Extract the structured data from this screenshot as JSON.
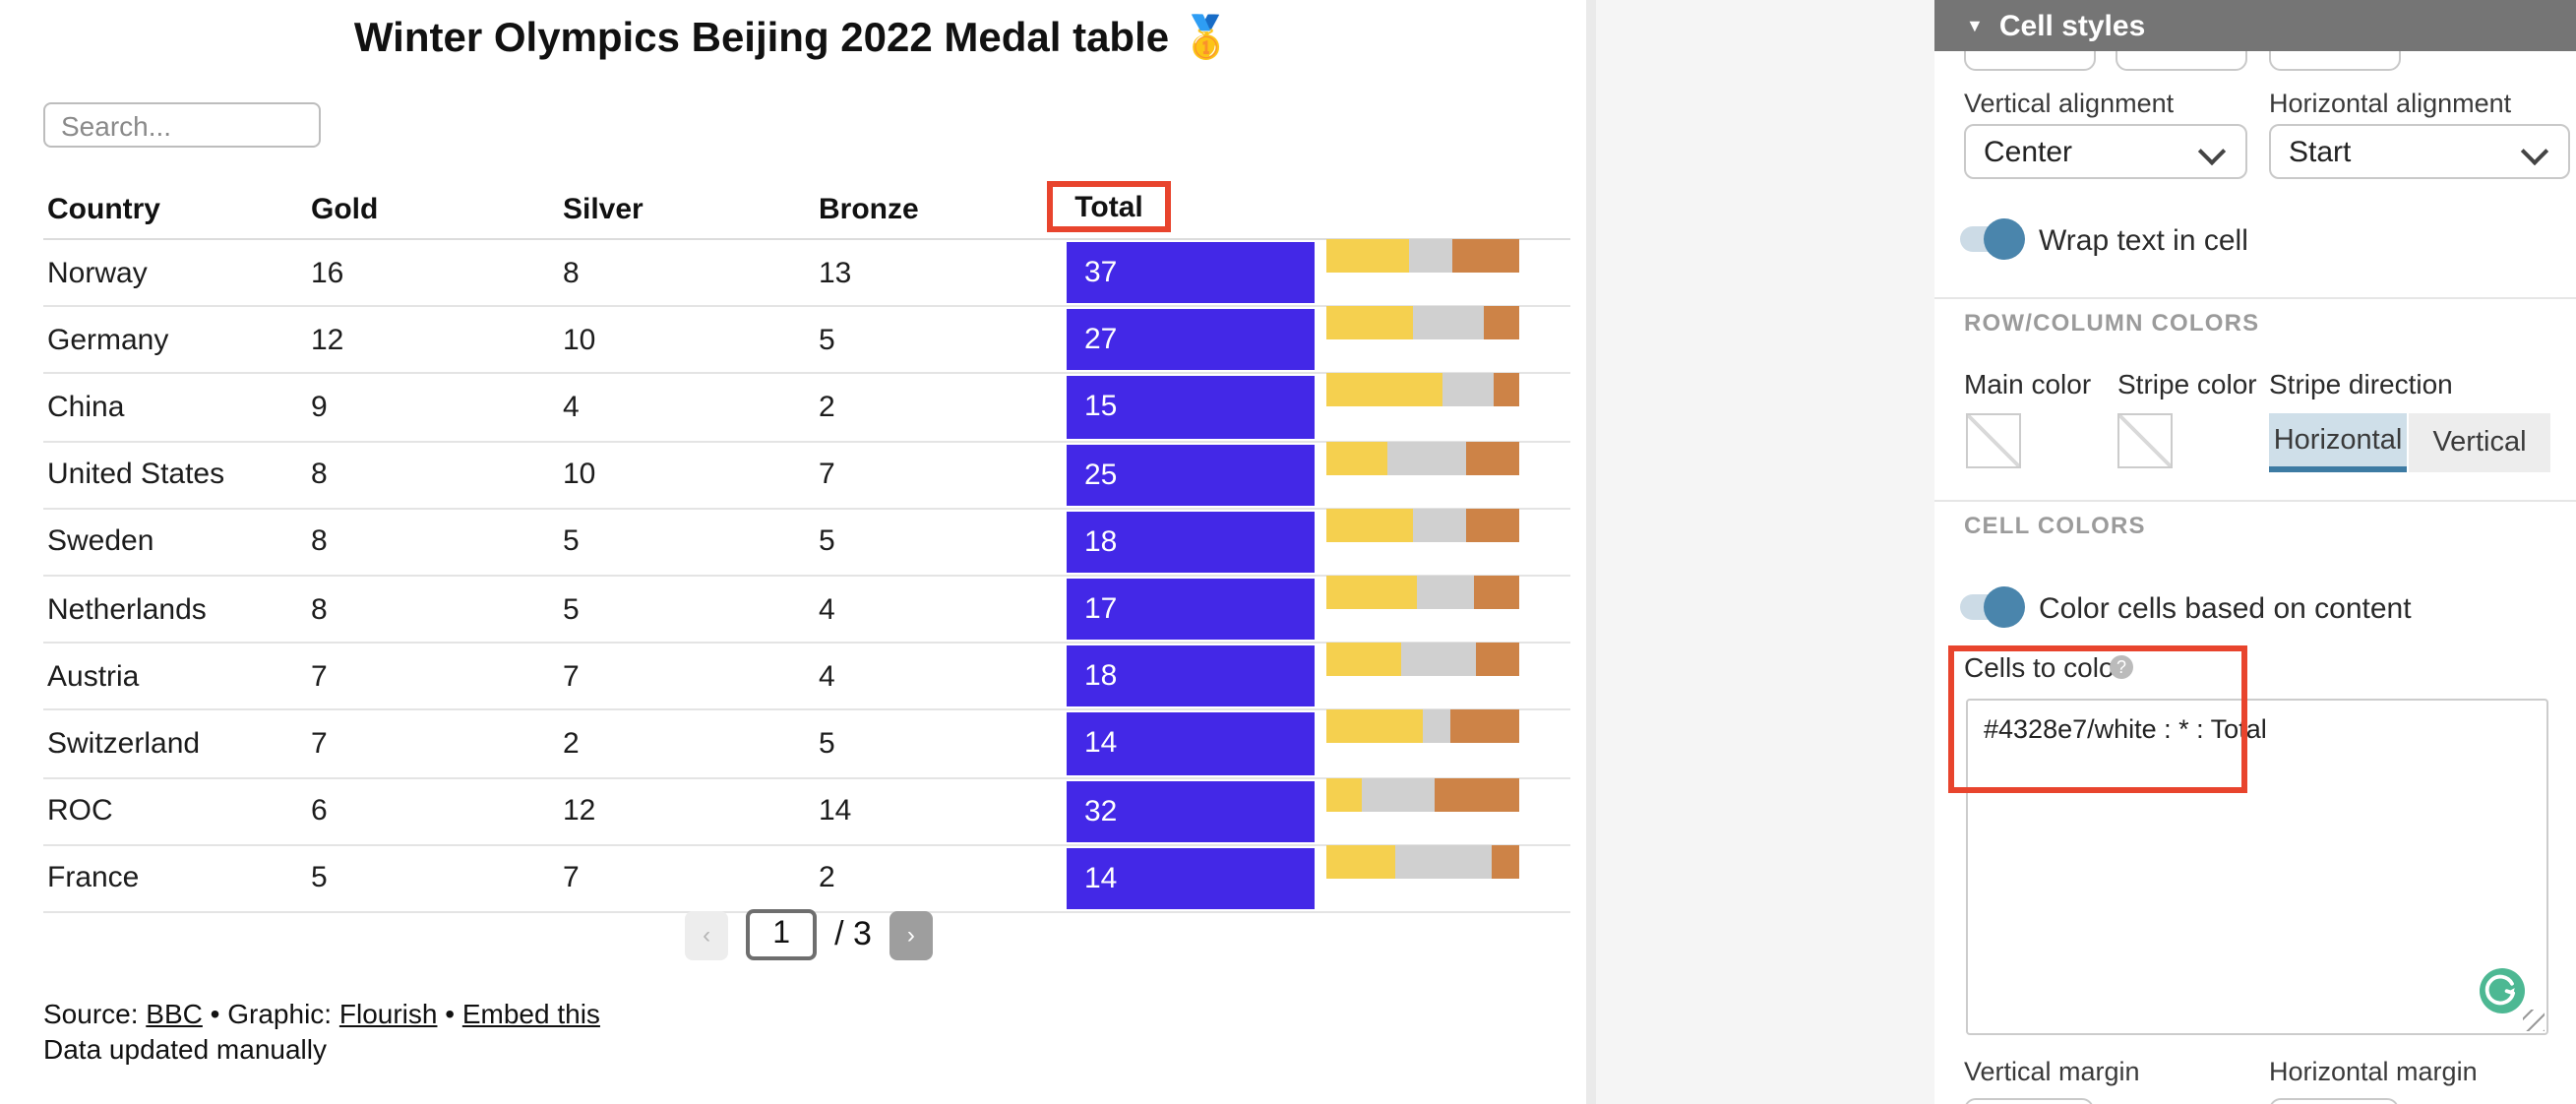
{
  "viz": {
    "title": "Winter Olympics Beijing 2022 Medal table 🥇",
    "search_placeholder": "Search...",
    "columns": [
      "Country",
      "Gold",
      "Silver",
      "Bronze",
      "Total"
    ],
    "rows": [
      {
        "country": "Norway",
        "gold": 16,
        "silver": 8,
        "bronze": 13,
        "total": 37
      },
      {
        "country": "Germany",
        "gold": 12,
        "silver": 10,
        "bronze": 5,
        "total": 27
      },
      {
        "country": "China",
        "gold": 9,
        "silver": 4,
        "bronze": 2,
        "total": 15
      },
      {
        "country": "United States",
        "gold": 8,
        "silver": 10,
        "bronze": 7,
        "total": 25
      },
      {
        "country": "Sweden",
        "gold": 8,
        "silver": 5,
        "bronze": 5,
        "total": 18
      },
      {
        "country": "Netherlands",
        "gold": 8,
        "silver": 5,
        "bronze": 4,
        "total": 17
      },
      {
        "country": "Austria",
        "gold": 7,
        "silver": 7,
        "bronze": 4,
        "total": 18
      },
      {
        "country": "Switzerland",
        "gold": 7,
        "silver": 2,
        "bronze": 5,
        "total": 14
      },
      {
        "country": "ROC",
        "gold": 6,
        "silver": 12,
        "bronze": 14,
        "total": 32
      },
      {
        "country": "France",
        "gold": 5,
        "silver": 7,
        "bronze": 2,
        "total": 14
      }
    ],
    "bar_style": "stacked-100pct-gold-silver-bronze",
    "pagination": {
      "prev": "‹",
      "current": "1",
      "of": "/ 3",
      "next": "›"
    },
    "footer": {
      "source_label": "Source:",
      "source_link": "BBC",
      "bullet": "•",
      "graphic_label": "Graphic:",
      "graphic_link": "Flourish",
      "embed_link": "Embed this",
      "updated_note": "Data updated manually"
    }
  },
  "panel": {
    "header_title": "Cell styles",
    "vertical_alignment_label": "Vertical alignment",
    "vertical_alignment_value": "Center",
    "horizontal_alignment_label": "Horizontal alignment",
    "horizontal_alignment_value": "Start",
    "wrap_toggle_label": "Wrap text in cell",
    "wrap_toggle_on": true,
    "row_column_colors_heading": "ROW/COLUMN COLORS",
    "main_color_label": "Main color",
    "stripe_color_label": "Stripe color",
    "stripe_direction_label": "Stripe direction",
    "stripe_direction_options": [
      "Horizontal",
      "Vertical"
    ],
    "stripe_direction_selected": "Horizontal",
    "cell_colors_heading": "CELL COLORS",
    "color_cells_toggle_label": "Color cells based on content",
    "color_cells_toggle_on": true,
    "cells_to_color_label": "Cells to color",
    "cells_to_color_value": "#4328e7/white : * : Total",
    "vertical_margin_label": "Vertical margin",
    "horizontal_margin_label": "Horizontal margin"
  },
  "icons": {
    "collapse": "▼",
    "help": "?"
  },
  "colors": {
    "total_cell_bg": "#4328e7",
    "total_cell_text": "#ffffff",
    "gold_bar": "#f5d04f",
    "silver_bar": "#d0d0d0",
    "bronze_bar": "#cd8347",
    "highlight_red": "#e8442d",
    "toggle_on_blue": "#4a85ac",
    "selected_segment_bg": "#cfdfe9",
    "selected_segment_underline": "#3d7ba3",
    "panel_header_bg": "#757575",
    "grammarly_green": "#4db893"
  }
}
